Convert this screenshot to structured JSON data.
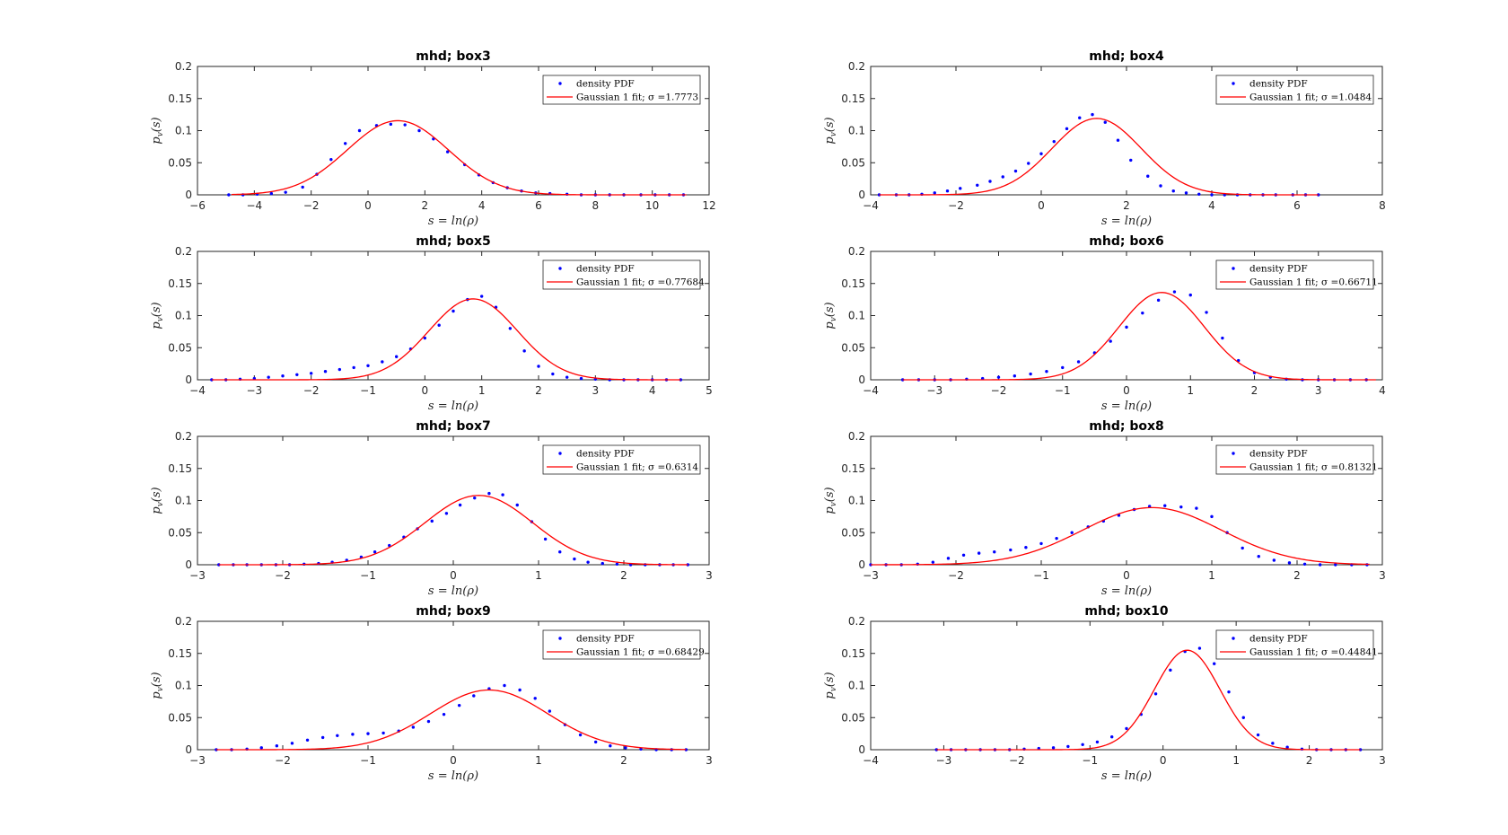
{
  "figure": {
    "xlabel": "s = ln(ρ)",
    "ylabel": "p_v(s)",
    "legend": {
      "points": "density PDF",
      "line_prefix": "Gaussian 1 fit; σ ="
    }
  },
  "chart_data": [
    {
      "type": "scatter",
      "title": "mhd; box3",
      "xlim": [
        -6,
        12
      ],
      "xticks": [
        -6,
        -4,
        -2,
        0,
        2,
        4,
        6,
        8,
        10,
        12
      ],
      "ylim": [
        0,
        0.2
      ],
      "yticks": [
        0,
        0.05,
        0.1,
        0.15,
        0.2
      ],
      "legend_position": "top-right",
      "grid": false,
      "series": [
        {
          "name": "density PDF",
          "type": "scatter",
          "color": "#0000ff",
          "x": [
            -4.9,
            -4.4,
            -3.9,
            -3.4,
            -2.9,
            -2.3,
            -1.8,
            -1.3,
            -0.8,
            -0.3,
            0.3,
            0.8,
            1.3,
            1.8,
            2.3,
            2.8,
            3.4,
            3.9,
            4.4,
            4.9,
            5.4,
            5.9,
            6.4,
            7.0,
            7.5,
            8.0,
            8.5,
            9.0,
            9.6,
            10.1,
            10.6,
            11.1
          ],
          "y": [
            0,
            0,
            0.001,
            0.002,
            0.004,
            0.012,
            0.032,
            0.055,
            0.08,
            0.1,
            0.108,
            0.11,
            0.109,
            0.1,
            0.087,
            0.067,
            0.047,
            0.031,
            0.019,
            0.011,
            0.006,
            0.003,
            0.002,
            0.001,
            0,
            0,
            0,
            0,
            0,
            0,
            0,
            0
          ]
        },
        {
          "name": "Gaussian 1 fit",
          "type": "line",
          "color": "#ff0000",
          "sigma": "1.7773",
          "model": "gaussian",
          "mu": 1.05,
          "peak": 0.1155,
          "x_range": [
            -4.8,
            11.2
          ]
        }
      ]
    },
    {
      "type": "scatter",
      "title": "mhd; box4",
      "xlim": [
        -4,
        8
      ],
      "xticks": [
        -4,
        -2,
        0,
        2,
        4,
        6,
        8
      ],
      "ylim": [
        0,
        0.2
      ],
      "yticks": [
        0,
        0.05,
        0.1,
        0.15,
        0.2
      ],
      "legend_position": "top-right",
      "grid": false,
      "series": [
        {
          "name": "density PDF",
          "type": "scatter",
          "color": "#0000ff",
          "x": [
            -3.8,
            -3.4,
            -3.1,
            -2.8,
            -2.5,
            -2.2,
            -1.9,
            -1.5,
            -1.2,
            -0.9,
            -0.6,
            -0.3,
            0.0,
            0.3,
            0.6,
            0.9,
            1.2,
            1.5,
            1.8,
            2.1,
            2.5,
            2.8,
            3.1,
            3.4,
            3.7,
            4.0,
            4.3,
            4.6,
            4.9,
            5.2,
            5.5,
            5.9,
            6.2,
            6.5
          ],
          "y": [
            0,
            0,
            0,
            0.001,
            0.003,
            0.006,
            0.01,
            0.015,
            0.021,
            0.028,
            0.037,
            0.049,
            0.064,
            0.083,
            0.103,
            0.12,
            0.125,
            0.113,
            0.085,
            0.054,
            0.029,
            0.014,
            0.006,
            0.003,
            0.001,
            0,
            0,
            0,
            0,
            0,
            0,
            0,
            0,
            0
          ]
        },
        {
          "name": "Gaussian 1 fit",
          "type": "line",
          "color": "#ff0000",
          "sigma": "1.0484",
          "model": "gaussian",
          "mu": 1.3,
          "peak": 0.119,
          "x_range": [
            -3.8,
            6.5
          ]
        }
      ]
    },
    {
      "type": "scatter",
      "title": "mhd; box5",
      "xlim": [
        -4,
        5
      ],
      "xticks": [
        -4,
        -3,
        -2,
        -1,
        0,
        1,
        2,
        3,
        4,
        5
      ],
      "ylim": [
        0,
        0.2
      ],
      "yticks": [
        0,
        0.05,
        0.1,
        0.15,
        0.2
      ],
      "legend_position": "top-right",
      "grid": false,
      "series": [
        {
          "name": "density PDF",
          "type": "scatter",
          "color": "#0000ff",
          "x": [
            -3.75,
            -3.5,
            -3.25,
            -3.0,
            -2.75,
            -2.5,
            -2.25,
            -2.0,
            -1.75,
            -1.5,
            -1.25,
            -1.0,
            -0.75,
            -0.5,
            -0.25,
            0.0,
            0.25,
            0.5,
            0.75,
            1.0,
            1.25,
            1.5,
            1.75,
            2.0,
            2.25,
            2.5,
            2.75,
            3.0,
            3.25,
            3.5,
            3.75,
            4.0,
            4.25,
            4.5
          ],
          "y": [
            0,
            0,
            0.001,
            0.002,
            0.004,
            0.006,
            0.008,
            0.01,
            0.013,
            0.016,
            0.019,
            0.022,
            0.028,
            0.036,
            0.048,
            0.065,
            0.085,
            0.107,
            0.125,
            0.13,
            0.113,
            0.08,
            0.045,
            0.021,
            0.009,
            0.004,
            0.002,
            0.001,
            0,
            0,
            0,
            0,
            0,
            0
          ]
        },
        {
          "name": "Gaussian 1 fit",
          "type": "line",
          "color": "#ff0000",
          "sigma": "0.77684",
          "model": "gaussian",
          "mu": 0.85,
          "peak": 0.126,
          "x_range": [
            -3.75,
            4.5
          ]
        }
      ]
    },
    {
      "type": "scatter",
      "title": "mhd; box6",
      "xlim": [
        -4,
        4
      ],
      "xticks": [
        -4,
        -3,
        -2,
        -1,
        0,
        1,
        2,
        3,
        4
      ],
      "ylim": [
        0,
        0.2
      ],
      "yticks": [
        0,
        0.05,
        0.1,
        0.15,
        0.2
      ],
      "legend_position": "top-right",
      "grid": false,
      "series": [
        {
          "name": "density PDF",
          "type": "scatter",
          "color": "#0000ff",
          "x": [
            -3.5,
            -3.25,
            -3.0,
            -2.75,
            -2.5,
            -2.25,
            -2.0,
            -1.75,
            -1.5,
            -1.25,
            -1.0,
            -0.75,
            -0.5,
            -0.25,
            0.0,
            0.25,
            0.5,
            0.75,
            1.0,
            1.25,
            1.5,
            1.75,
            2.0,
            2.25,
            2.5,
            2.75,
            3.0,
            3.25,
            3.5,
            3.75
          ],
          "y": [
            0,
            0,
            0,
            0,
            0.001,
            0.002,
            0.004,
            0.006,
            0.009,
            0.013,
            0.019,
            0.028,
            0.042,
            0.06,
            0.082,
            0.104,
            0.124,
            0.137,
            0.132,
            0.105,
            0.065,
            0.03,
            0.011,
            0.004,
            0.001,
            0,
            0,
            0,
            0,
            0
          ]
        },
        {
          "name": "Gaussian 1 fit",
          "type": "line",
          "color": "#ff0000",
          "sigma": "0.66711",
          "model": "gaussian",
          "mu": 0.55,
          "peak": 0.136,
          "x_range": [
            -3.5,
            3.9
          ]
        }
      ]
    },
    {
      "type": "scatter",
      "title": "mhd; box7",
      "xlim": [
        -3,
        3
      ],
      "xticks": [
        -3,
        -2,
        -1,
        0,
        1,
        2,
        3
      ],
      "ylim": [
        0,
        0.2
      ],
      "yticks": [
        0,
        0.05,
        0.1,
        0.15,
        0.2
      ],
      "legend_position": "top-right",
      "grid": false,
      "series": [
        {
          "name": "density PDF",
          "type": "scatter",
          "color": "#0000ff",
          "x": [
            -2.75,
            -2.58,
            -2.42,
            -2.25,
            -2.08,
            -1.92,
            -1.75,
            -1.58,
            -1.42,
            -1.25,
            -1.08,
            -0.92,
            -0.75,
            -0.58,
            -0.42,
            -0.25,
            -0.08,
            0.08,
            0.25,
            0.42,
            0.58,
            0.75,
            0.92,
            1.08,
            1.25,
            1.42,
            1.58,
            1.75,
            1.92,
            2.08,
            2.25,
            2.42,
            2.58,
            2.75
          ],
          "y": [
            0,
            0,
            0,
            0,
            0,
            0,
            0.001,
            0.002,
            0.004,
            0.007,
            0.012,
            0.02,
            0.03,
            0.043,
            0.056,
            0.068,
            0.08,
            0.093,
            0.104,
            0.111,
            0.109,
            0.093,
            0.067,
            0.04,
            0.02,
            0.009,
            0.004,
            0.002,
            0.001,
            0,
            0,
            0,
            0,
            0
          ]
        },
        {
          "name": "Gaussian 1 fit",
          "type": "line",
          "color": "#ff0000",
          "sigma": "0.6314",
          "model": "gaussian",
          "mu": 0.3,
          "peak": 0.108,
          "x_range": [
            -2.75,
            2.75
          ]
        }
      ]
    },
    {
      "type": "scatter",
      "title": "mhd; box8",
      "xlim": [
        -3,
        3
      ],
      "xticks": [
        -3,
        -2,
        -1,
        0,
        1,
        2,
        3
      ],
      "ylim": [
        0,
        0.2
      ],
      "yticks": [
        0,
        0.05,
        0.1,
        0.15,
        0.2
      ],
      "legend_position": "top-right",
      "grid": false,
      "series": [
        {
          "name": "density PDF",
          "type": "scatter",
          "color": "#0000ff",
          "x": [
            -3.0,
            -2.82,
            -2.64,
            -2.45,
            -2.27,
            -2.09,
            -1.91,
            -1.73,
            -1.55,
            -1.36,
            -1.18,
            -1.0,
            -0.82,
            -0.64,
            -0.45,
            -0.27,
            -0.09,
            0.09,
            0.27,
            0.45,
            0.64,
            0.82,
            1.0,
            1.18,
            1.36,
            1.55,
            1.73,
            1.91,
            2.09,
            2.27,
            2.45,
            2.64,
            2.82
          ],
          "y": [
            0,
            0,
            0,
            0.001,
            0.004,
            0.01,
            0.015,
            0.018,
            0.02,
            0.023,
            0.027,
            0.033,
            0.041,
            0.05,
            0.059,
            0.068,
            0.077,
            0.086,
            0.091,
            0.092,
            0.09,
            0.088,
            0.075,
            0.05,
            0.026,
            0.013,
            0.007,
            0.003,
            0.001,
            0,
            0,
            0,
            0
          ]
        },
        {
          "name": "Gaussian 1 fit",
          "type": "line",
          "color": "#ff0000",
          "sigma": "0.81321",
          "model": "gaussian",
          "mu": 0.3,
          "peak": 0.089,
          "x_range": [
            -3.0,
            2.85
          ]
        }
      ]
    },
    {
      "type": "scatter",
      "title": "mhd; box9",
      "xlim": [
        -3,
        3
      ],
      "xticks": [
        -3,
        -2,
        -1,
        0,
        1,
        2,
        3
      ],
      "ylim": [
        0,
        0.2
      ],
      "yticks": [
        0,
        0.05,
        0.1,
        0.15,
        0.2
      ],
      "legend_position": "top-right",
      "grid": false,
      "series": [
        {
          "name": "density PDF",
          "type": "scatter",
          "color": "#0000ff",
          "x": [
            -2.78,
            -2.6,
            -2.42,
            -2.25,
            -2.07,
            -1.89,
            -1.71,
            -1.53,
            -1.36,
            -1.18,
            -1.0,
            -0.82,
            -0.64,
            -0.47,
            -0.29,
            -0.11,
            0.07,
            0.24,
            0.42,
            0.6,
            0.78,
            0.96,
            1.13,
            1.31,
            1.49,
            1.67,
            1.84,
            2.02,
            2.2,
            2.38,
            2.56,
            2.73
          ],
          "y": [
            0,
            0,
            0.001,
            0.003,
            0.006,
            0.01,
            0.015,
            0.019,
            0.022,
            0.024,
            0.025,
            0.026,
            0.029,
            0.035,
            0.044,
            0.055,
            0.069,
            0.084,
            0.095,
            0.1,
            0.093,
            0.08,
            0.06,
            0.039,
            0.023,
            0.012,
            0.006,
            0.003,
            0.001,
            0,
            0,
            0
          ]
        },
        {
          "name": "Gaussian 1 fit",
          "type": "line",
          "color": "#ff0000",
          "sigma": "0.68429",
          "model": "gaussian",
          "mu": 0.42,
          "peak": 0.093,
          "x_range": [
            -2.78,
            2.73
          ]
        }
      ]
    },
    {
      "type": "scatter",
      "title": "mhd; box10",
      "xlim": [
        -4,
        3
      ],
      "xticks": [
        -4,
        -3,
        -2,
        -1,
        0,
        1,
        2,
        3
      ],
      "ylim": [
        0,
        0.2
      ],
      "yticks": [
        0,
        0.05,
        0.1,
        0.15,
        0.2
      ],
      "legend_position": "top-right",
      "grid": false,
      "series": [
        {
          "name": "density PDF",
          "type": "scatter",
          "color": "#0000ff",
          "x": [
            -3.1,
            -2.9,
            -2.7,
            -2.5,
            -2.3,
            -2.1,
            -1.9,
            -1.7,
            -1.5,
            -1.3,
            -1.1,
            -0.9,
            -0.7,
            -0.5,
            -0.3,
            -0.1,
            0.1,
            0.3,
            0.5,
            0.7,
            0.9,
            1.1,
            1.3,
            1.5,
            1.7,
            1.9,
            2.1,
            2.3,
            2.5,
            2.7
          ],
          "y": [
            0,
            0,
            0,
            0,
            0,
            0,
            0.001,
            0.002,
            0.003,
            0.005,
            0.008,
            0.012,
            0.02,
            0.033,
            0.055,
            0.087,
            0.124,
            0.153,
            0.158,
            0.134,
            0.09,
            0.05,
            0.023,
            0.01,
            0.004,
            0.001,
            0,
            0,
            0,
            0
          ]
        },
        {
          "name": "Gaussian 1 fit",
          "type": "line",
          "color": "#ff0000",
          "sigma": "0.44841",
          "model": "gaussian",
          "mu": 0.33,
          "peak": 0.155,
          "x_range": [
            -3.1,
            2.7
          ]
        }
      ]
    }
  ]
}
